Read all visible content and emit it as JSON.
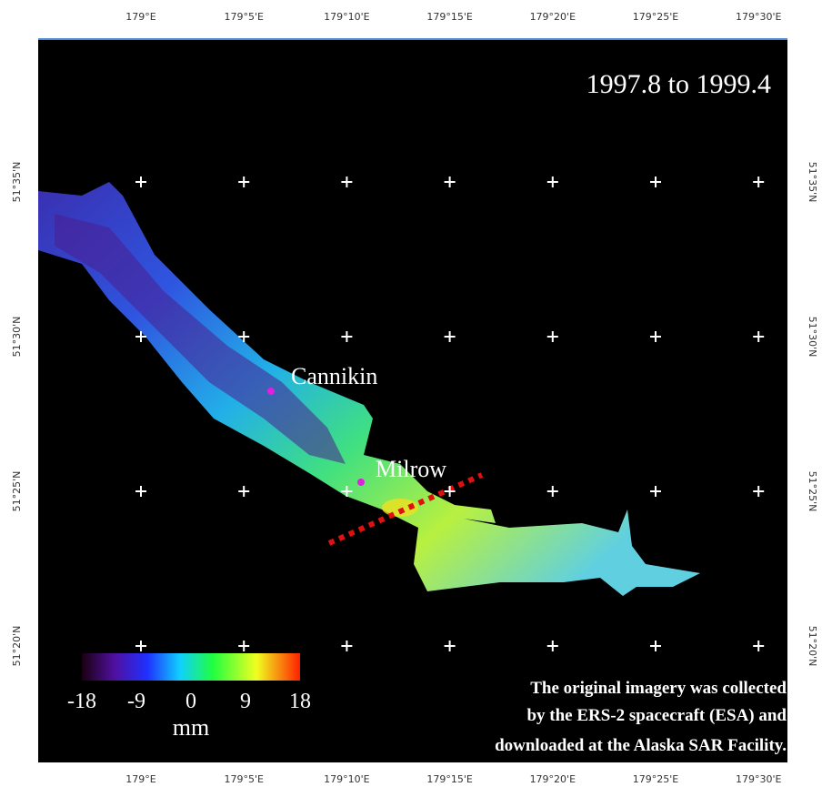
{
  "map": {
    "title": "1997.8 to 1999.4",
    "longitude_labels": [
      "179°E",
      "179°5'E",
      "179°10'E",
      "179°15'E",
      "179°20'E",
      "179°25'E",
      "179°30'E"
    ],
    "latitude_labels": [
      "51°35'N",
      "51°30'N",
      "51°25'N",
      "51°20'N"
    ],
    "places": [
      "Cannikin",
      "Milrow"
    ],
    "colorbar": {
      "ticks": [
        -18,
        -9,
        0,
        9,
        18
      ],
      "unit": "mm"
    },
    "credit": [
      "The original imagery was collected",
      "by the ERS-2 spacecraft (ESA) and",
      "downloaded at the Alaska SAR Facility."
    ]
  }
}
